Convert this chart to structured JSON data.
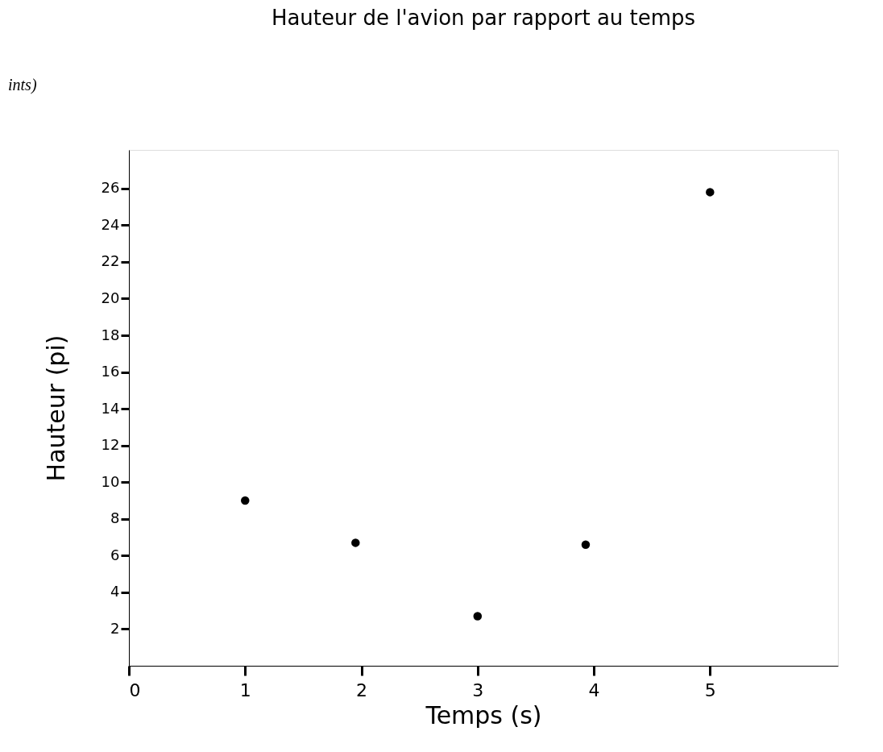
{
  "chart_data": {
    "type": "scatter",
    "title": "Hauteur de l'avion par rapport au temps",
    "xlabel": "Temps (s)",
    "ylabel": "Hauteur (pi)",
    "annotations": [
      "ints)"
    ],
    "x": [
      1,
      1.95,
      3,
      3.93,
      5
    ],
    "series": [
      {
        "color": "#000000",
        "values": [
          9,
          6.7,
          2.7,
          6.6,
          25.8
        ]
      }
    ],
    "xlim": [
      0,
      6.1
    ],
    "ylim": [
      0,
      28.1
    ],
    "xticks": [
      0,
      1,
      2,
      3,
      4,
      5
    ],
    "yticks": [
      2,
      4,
      6,
      8,
      10,
      12,
      14,
      16,
      18,
      20,
      22,
      24,
      26
    ],
    "grid": false,
    "marker": "circle"
  }
}
